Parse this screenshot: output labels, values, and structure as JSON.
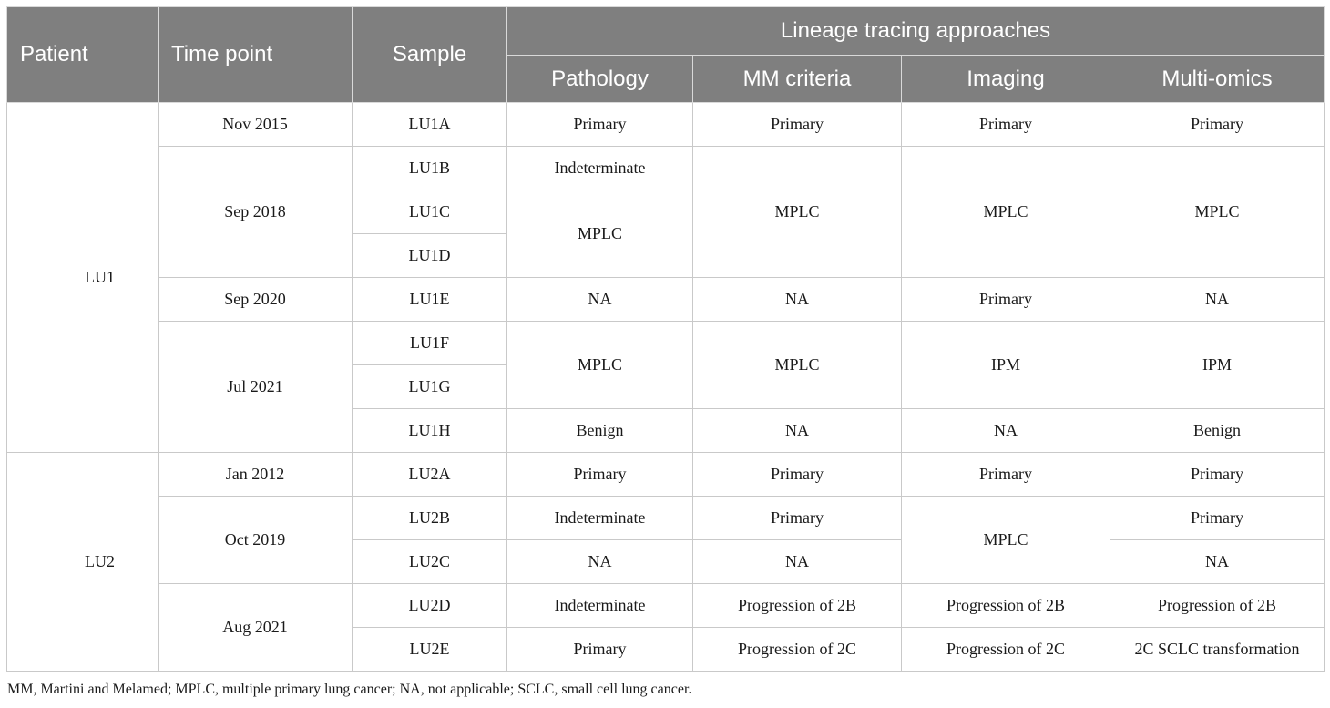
{
  "header": {
    "patient": "Patient",
    "time_point": "Time point",
    "sample": "Sample",
    "group": "Lineage tracing approaches",
    "pathology": "Pathology",
    "mm_criteria": "MM criteria",
    "imaging": "Imaging",
    "multi_omics": "Multi-omics"
  },
  "rows": [
    {
      "patient": "LU1",
      "time": "Nov 2015",
      "sample": "LU1A",
      "pathology": "Primary",
      "mm": "Primary",
      "imaging": "Primary",
      "omics": "Primary"
    },
    {
      "time": "Sep 2018",
      "sample": "LU1B",
      "pathology": "Indeterminate",
      "mm": "MPLC",
      "imaging": "MPLC",
      "omics": "MPLC"
    },
    {
      "sample": "LU1C",
      "pathology": "MPLC"
    },
    {
      "sample": "LU1D"
    },
    {
      "time": "Sep 2020",
      "sample": "LU1E",
      "pathology": "NA",
      "mm": "NA",
      "imaging": "Primary",
      "omics": "NA"
    },
    {
      "time": "Jul 2021",
      "sample": "LU1F",
      "pathology": "MPLC",
      "mm": "MPLC",
      "imaging": "IPM",
      "omics": "IPM"
    },
    {
      "sample": "LU1G"
    },
    {
      "sample": "LU1H",
      "pathology": "Benign",
      "mm": "NA",
      "imaging": "NA",
      "omics": "Benign"
    },
    {
      "patient": "LU2",
      "time": "Jan 2012",
      "sample": "LU2A",
      "pathology": "Primary",
      "mm": "Primary",
      "imaging": "Primary",
      "omics": "Primary"
    },
    {
      "time": "Oct 2019",
      "sample": "LU2B",
      "pathology": "Indeterminate",
      "mm": "Primary",
      "imaging": "MPLC",
      "omics": "Primary"
    },
    {
      "sample": "LU2C",
      "pathology": "NA",
      "mm": "NA",
      "omics": "NA"
    },
    {
      "time": "Aug 2021",
      "sample": "LU2D",
      "pathology": "Indeterminate",
      "mm": "Progression of 2B",
      "imaging": "Progression of 2B",
      "omics": "Progression of 2B"
    },
    {
      "sample": "LU2E",
      "pathology": "Primary",
      "mm": "Progression of 2C",
      "imaging": "Progression of 2C",
      "omics": "2C SCLC transformation"
    }
  ],
  "footnote": "MM, Martini and Melamed; MPLC, multiple primary lung cancer; NA, not applicable; SCLC, small cell lung cancer."
}
